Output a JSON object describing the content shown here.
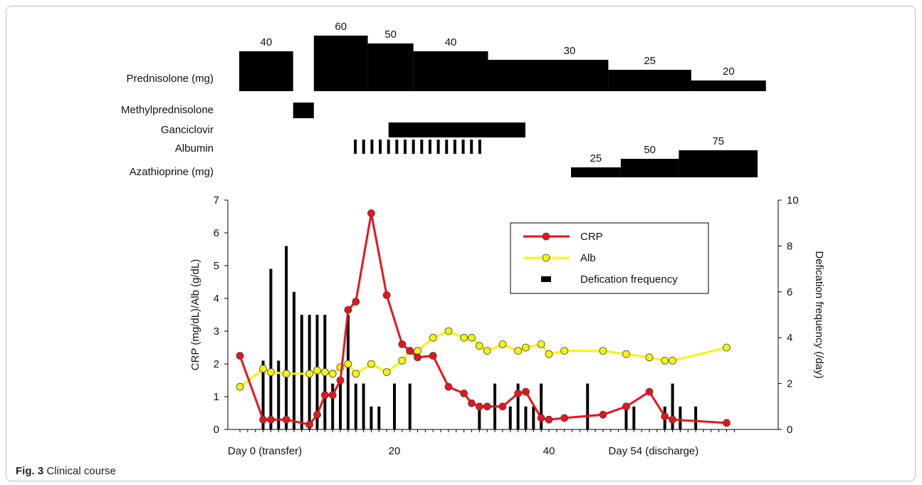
{
  "caption": {
    "label": "Fig. 3",
    "text": "Clinical course"
  },
  "colors": {
    "crp": "#e8141b",
    "alb": "#f5f50a",
    "defecation": "#000000",
    "treatment": "#000000"
  },
  "treatments": {
    "rows": [
      "Prednisolone (mg)",
      "Methylprednisolone",
      "Ganciclovir",
      "Albumin",
      "Azathioprine (mg)"
    ],
    "prednisolone": {
      "label": "Prednisolone (mg)",
      "segments": [
        {
          "start": 0,
          "end": 6.5,
          "dose": "40"
        },
        {
          "start": 9,
          "end": 15.5,
          "dose": "60"
        },
        {
          "start": 15.5,
          "end": 21,
          "dose": "50"
        },
        {
          "start": 21,
          "end": 30,
          "dose": "40"
        },
        {
          "start": 30,
          "end": 44.5,
          "dose": "30"
        },
        {
          "start": 44.5,
          "end": 54.5,
          "dose": "25"
        },
        {
          "start": 54.5,
          "end": 63.5,
          "dose": "20"
        }
      ]
    },
    "methylprednisolone": {
      "label": "Methylprednisolone",
      "start": 6.5,
      "end": 9
    },
    "ganciclovir": {
      "label": "Ganciclovir",
      "start": 18,
      "end": 34.5
    },
    "albumin": {
      "label": "Albumin",
      "days": [
        14,
        15,
        16,
        17,
        18,
        19,
        20,
        21,
        22,
        23,
        24,
        25,
        26,
        27,
        28,
        29
      ]
    },
    "azathioprine": {
      "label": "Azathioprine (mg)",
      "segments": [
        {
          "start": 40,
          "end": 46,
          "dose": "25"
        },
        {
          "start": 46,
          "end": 53,
          "dose": "50"
        },
        {
          "start": 53,
          "end": 62.5,
          "dose": "75"
        }
      ]
    }
  },
  "chart_data": {
    "type": "line",
    "xlim": [
      0,
      64
    ],
    "x_tick_labels": [
      {
        "x": 0,
        "label": "Day 0 (transfer)"
      },
      {
        "x": 20,
        "label": "20"
      },
      {
        "x": 40,
        "label": "40"
      },
      {
        "x": 54,
        "label": "Day 54 (discharge)"
      }
    ],
    "ylabel_left": "CRP (mg/dL)/Alb (g/dL)",
    "ylabel_right": "Defication frequency (/day)",
    "ylim_left": [
      0,
      7
    ],
    "ylim_right": [
      0,
      10
    ],
    "y_ticks_left": [
      "0",
      "1",
      "2",
      "3",
      "4",
      "5",
      "6",
      "7"
    ],
    "y_ticks_right": [
      "0",
      "2",
      "4",
      "6",
      "8",
      "10"
    ],
    "legend": {
      "position": "top-right",
      "entries": [
        "CRP",
        "Alb",
        "Defication frequency"
      ]
    },
    "series": [
      {
        "name": "CRP",
        "axis": "left",
        "x": [
          0,
          3,
          4,
          6,
          9,
          10,
          11,
          12,
          13,
          14,
          15,
          17,
          19,
          21,
          22,
          23,
          25,
          27,
          29,
          30,
          31,
          32,
          34,
          36,
          37,
          39,
          40,
          42,
          47,
          50,
          53,
          55,
          56,
          63
        ],
        "y": [
          2.25,
          0.3,
          0.3,
          0.3,
          0.15,
          0.45,
          1.05,
          1.05,
          1.5,
          3.65,
          3.9,
          6.6,
          4.1,
          2.6,
          2.4,
          2.2,
          2.25,
          1.3,
          1.1,
          0.8,
          0.7,
          0.7,
          0.7,
          1.1,
          1.15,
          0.35,
          0.3,
          0.35,
          0.45,
          0.7,
          1.15,
          0.4,
          0.3,
          0.2
        ]
      },
      {
        "name": "Alb",
        "axis": "left",
        "x": [
          0,
          3,
          4,
          6,
          9,
          10,
          11,
          12,
          13,
          14,
          15,
          17,
          19,
          21,
          22,
          23,
          25,
          27,
          29,
          30,
          31,
          32,
          34,
          36,
          37,
          39,
          40,
          42,
          47,
          50,
          53,
          55,
          56,
          63
        ],
        "y": [
          1.3,
          1.85,
          1.75,
          1.7,
          1.7,
          1.8,
          1.75,
          1.7,
          1.9,
          2.0,
          1.7,
          2.0,
          1.75,
          2.1,
          2.4,
          2.4,
          2.8,
          3.0,
          2.8,
          2.8,
          2.55,
          2.4,
          2.6,
          2.4,
          2.5,
          2.6,
          2.3,
          2.4,
          2.4,
          2.3,
          2.2,
          2.1,
          2.1,
          2.5
        ]
      },
      {
        "name": "Defication frequency",
        "axis": "right",
        "type": "bar",
        "x": [
          3,
          4,
          5,
          6,
          7,
          8,
          9,
          10,
          11,
          12,
          13,
          14,
          15,
          16,
          17,
          18,
          20,
          22,
          31,
          33,
          35,
          36,
          37,
          38,
          39,
          45,
          50,
          51,
          55,
          56,
          57,
          59
        ],
        "y": [
          3,
          7,
          3,
          8,
          6,
          5,
          5,
          5,
          5,
          2,
          2,
          5,
          2,
          2,
          1,
          1,
          2,
          2,
          1,
          2,
          1,
          2,
          1,
          1,
          2,
          2,
          1,
          1,
          1,
          2,
          1,
          1
        ]
      }
    ]
  }
}
